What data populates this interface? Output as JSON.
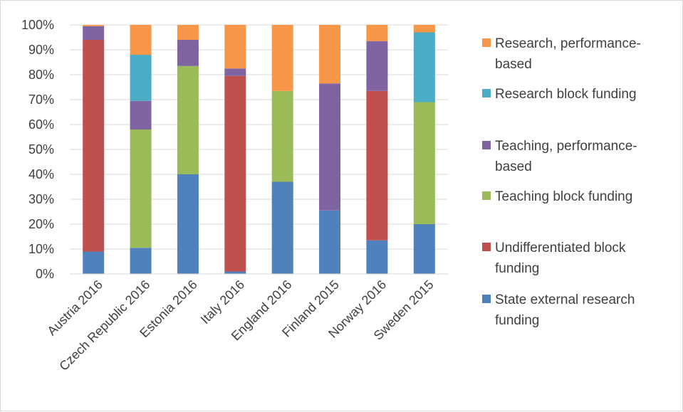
{
  "chart_data": {
    "type": "bar",
    "stacked": true,
    "categories": [
      "Austria 2016",
      "Czech Republic 2016",
      "Estonia 2016",
      "Italy 2016",
      "England 2016",
      "Finland 2015",
      "Norway 2016",
      "Sweden 2015"
    ],
    "ylim": [
      0,
      100
    ],
    "yticks": [
      "0%",
      "10%",
      "20%",
      "30%",
      "40%",
      "50%",
      "60%",
      "70%",
      "80%",
      "90%",
      "100%"
    ],
    "grid": true,
    "legend_position": "right",
    "series": [
      {
        "name": "State external research funding",
        "color": "#4f81bd",
        "values": [
          9,
          10.5,
          40,
          1,
          37,
          25.5,
          13.5,
          20
        ]
      },
      {
        "name": "Undifferentiated block funding",
        "color": "#c0504d",
        "values": [
          85,
          0,
          0,
          78.5,
          0,
          0,
          60,
          0
        ]
      },
      {
        "name": "Teaching block funding",
        "color": "#9bbb59",
        "values": [
          0,
          47.5,
          43.5,
          0,
          36.5,
          0,
          0,
          49
        ]
      },
      {
        "name": "Teaching, performance-based",
        "color": "#8064a2",
        "values": [
          5.5,
          11.5,
          10.5,
          3,
          0,
          51,
          20,
          0
        ]
      },
      {
        "name": "Research block funding",
        "color": "#4bacc6",
        "values": [
          0,
          18.5,
          0,
          0,
          0,
          0,
          0,
          28
        ]
      },
      {
        "name": "Research, performance-based",
        "color": "#f79646",
        "values": [
          0.5,
          12,
          6,
          17.5,
          26.5,
          23.5,
          6.5,
          3
        ]
      }
    ],
    "legend": [
      {
        "lines": [
          "Research, performance-",
          "based"
        ],
        "color": "#f79646"
      },
      {
        "lines": [
          "Research block funding"
        ],
        "color": "#4bacc6"
      },
      {
        "lines": [
          "Teaching, performance-",
          "based"
        ],
        "color": "#8064a2"
      },
      {
        "lines": [
          "Teaching block funding"
        ],
        "color": "#9bbb59"
      },
      {
        "lines": [
          "Undifferentiated block",
          "funding"
        ],
        "color": "#c0504d"
      },
      {
        "lines": [
          "State external research",
          "funding"
        ],
        "color": "#4f81bd"
      }
    ]
  }
}
